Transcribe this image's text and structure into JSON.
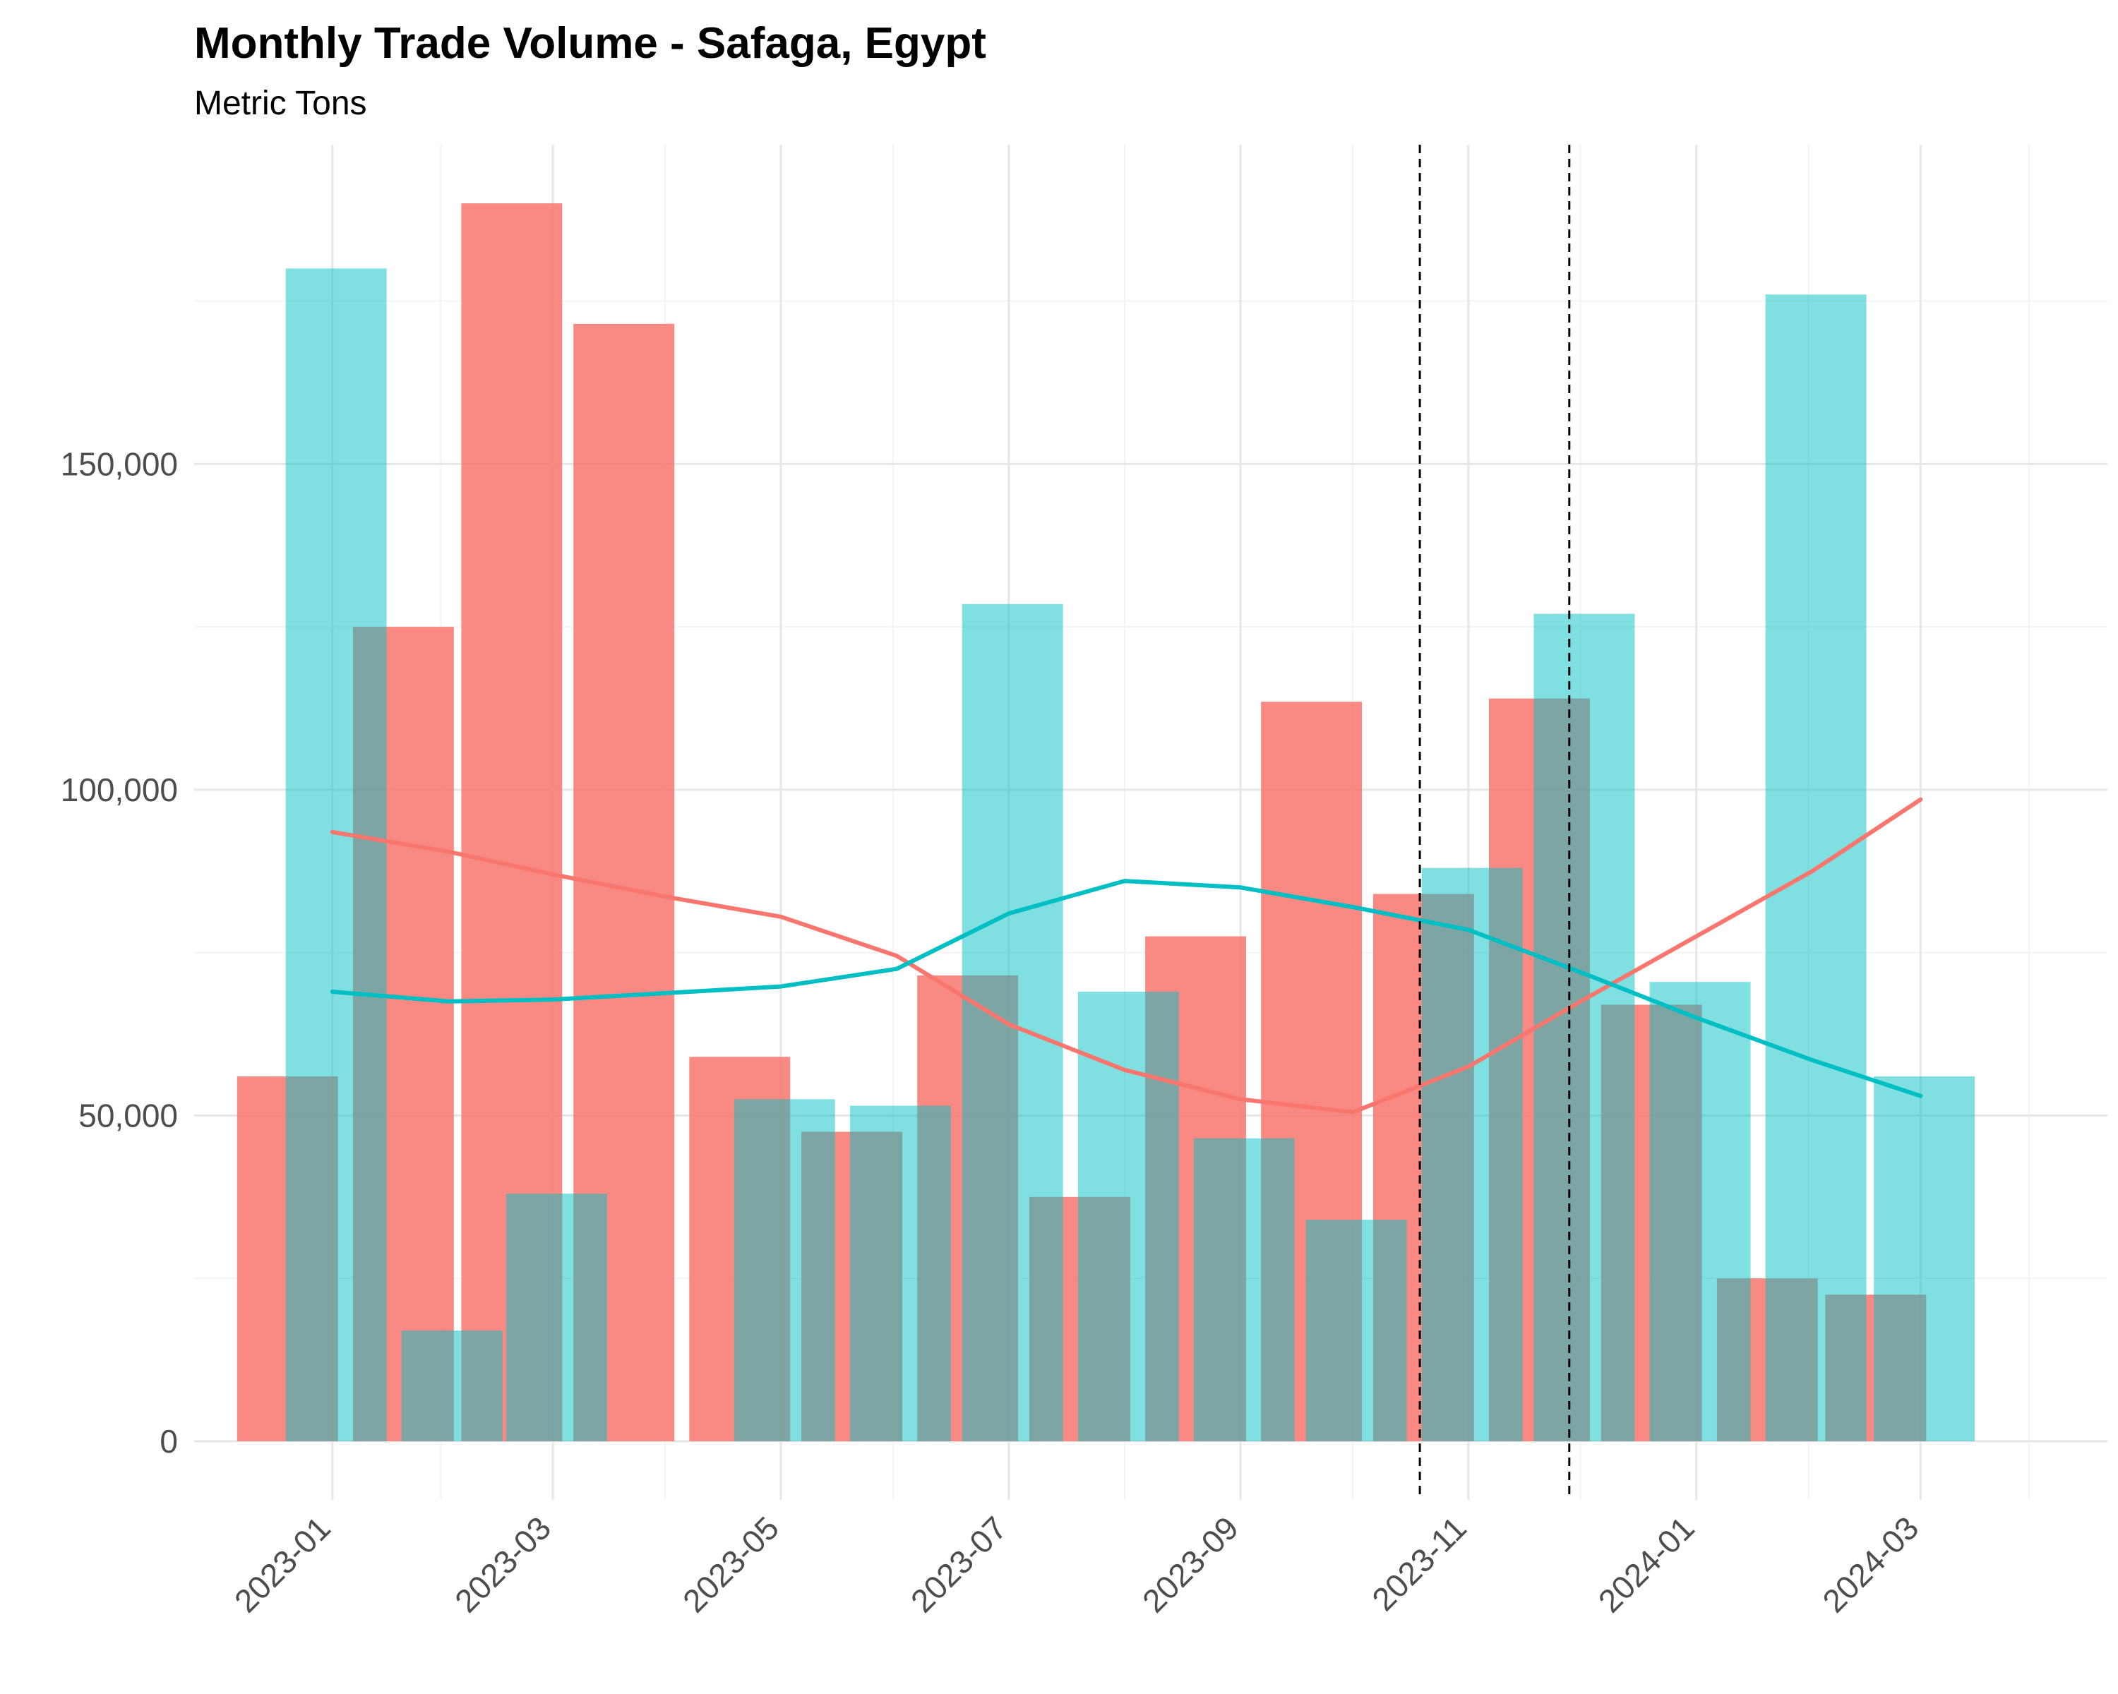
{
  "chart_data": {
    "type": "bar",
    "title": "Monthly Trade Volume - Safaga, Egypt",
    "subtitle": "Metric Tons",
    "xlabel": "",
    "ylabel": "",
    "ylim": [
      -9000,
      199000
    ],
    "x_range": [
      "2022-11-25",
      "2024-04-20"
    ],
    "y_ticks": [
      0,
      50000,
      100000,
      150000
    ],
    "y_tick_labels": [
      "0",
      "50,000",
      "100,000",
      "150,000"
    ],
    "x_ticks": [
      "2023-01-01",
      "2023-03-01",
      "2023-05-01",
      "2023-07-01",
      "2023-09-01",
      "2023-11-01",
      "2024-01-01",
      "2024-03-01"
    ],
    "x_tick_labels": [
      "2023-01",
      "2023-03",
      "2023-05",
      "2023-07",
      "2023-09",
      "2023-11",
      "2024-01",
      "2024-03"
    ],
    "grid": true,
    "legend": "none",
    "colors": {
      "series_a": "#F8766D",
      "series_b": "#00BFC4"
    },
    "series": [
      {
        "values": [
          {
            "date": "2022-12-20",
            "value": 56000
          },
          {
            "date": "2023-01-20",
            "value": 125000
          },
          {
            "date": "2023-02-18",
            "value": 190000
          },
          {
            "date": "2023-03-20",
            "value": 171500
          },
          {
            "date": "2023-04-20",
            "value": 59000
          },
          {
            "date": "2023-05-20",
            "value": 47500
          },
          {
            "date": "2023-06-20",
            "value": 71500
          },
          {
            "date": "2023-07-20",
            "value": 37500
          },
          {
            "date": "2023-08-20",
            "value": 77500
          },
          {
            "date": "2023-09-20",
            "value": 113500
          },
          {
            "date": "2023-10-20",
            "value": 84000
          },
          {
            "date": "2023-11-20",
            "value": 114000
          },
          {
            "date": "2023-12-20",
            "value": 67000
          },
          {
            "date": "2024-01-20",
            "value": 25000
          },
          {
            "date": "2024-02-18",
            "value": 22500
          }
        ]
      },
      {
        "values": [
          {
            "date": "2023-01-02",
            "value": 180000
          },
          {
            "date": "2023-02-02",
            "value": 17000
          },
          {
            "date": "2023-03-02",
            "value": 38000
          },
          {
            "date": "2023-05-02",
            "value": 52500
          },
          {
            "date": "2023-06-02",
            "value": 51500
          },
          {
            "date": "2023-07-02",
            "value": 128500
          },
          {
            "date": "2023-08-02",
            "value": 69000
          },
          {
            "date": "2023-09-02",
            "value": 46500
          },
          {
            "date": "2023-10-02",
            "value": 34000
          },
          {
            "date": "2023-11-02",
            "value": 88000
          },
          {
            "date": "2023-12-02",
            "value": 127000
          },
          {
            "date": "2024-01-02",
            "value": 70500
          },
          {
            "date": "2024-02-02",
            "value": 176000
          },
          {
            "date": "2024-03-02",
            "value": 56000
          }
        ]
      }
    ],
    "trend_lines": [
      {
        "series_index": 0,
        "points": [
          {
            "date": "2023-01-01",
            "value": 93500
          },
          {
            "date": "2023-02-01",
            "value": 90500
          },
          {
            "date": "2023-03-01",
            "value": 87000
          },
          {
            "date": "2023-04-01",
            "value": 83500
          },
          {
            "date": "2023-05-01",
            "value": 80500
          },
          {
            "date": "2023-06-01",
            "value": 74500
          },
          {
            "date": "2023-07-01",
            "value": 64000
          },
          {
            "date": "2023-08-01",
            "value": 57000
          },
          {
            "date": "2023-09-01",
            "value": 52500
          },
          {
            "date": "2023-10-01",
            "value": 50500
          },
          {
            "date": "2023-11-01",
            "value": 57500
          },
          {
            "date": "2023-12-01",
            "value": 67500
          },
          {
            "date": "2024-01-01",
            "value": 77500
          },
          {
            "date": "2024-02-01",
            "value": 87500
          },
          {
            "date": "2024-03-01",
            "value": 98500
          }
        ]
      },
      {
        "series_index": 1,
        "points": [
          {
            "date": "2023-01-01",
            "value": 69000
          },
          {
            "date": "2023-02-01",
            "value": 67500
          },
          {
            "date": "2023-03-01",
            "value": 67800
          },
          {
            "date": "2023-04-01",
            "value": 68800
          },
          {
            "date": "2023-05-01",
            "value": 69800
          },
          {
            "date": "2023-06-01",
            "value": 72500
          },
          {
            "date": "2023-07-01",
            "value": 81000
          },
          {
            "date": "2023-08-01",
            "value": 86000
          },
          {
            "date": "2023-09-01",
            "value": 85000
          },
          {
            "date": "2023-10-01",
            "value": 82000
          },
          {
            "date": "2023-11-01",
            "value": 78500
          },
          {
            "date": "2023-12-01",
            "value": 72000
          },
          {
            "date": "2024-01-01",
            "value": 65000
          },
          {
            "date": "2024-02-01",
            "value": 58500
          },
          {
            "date": "2024-03-01",
            "value": 53000
          }
        ]
      }
    ],
    "reference_lines": [
      "2023-10-19",
      "2023-11-28"
    ]
  }
}
